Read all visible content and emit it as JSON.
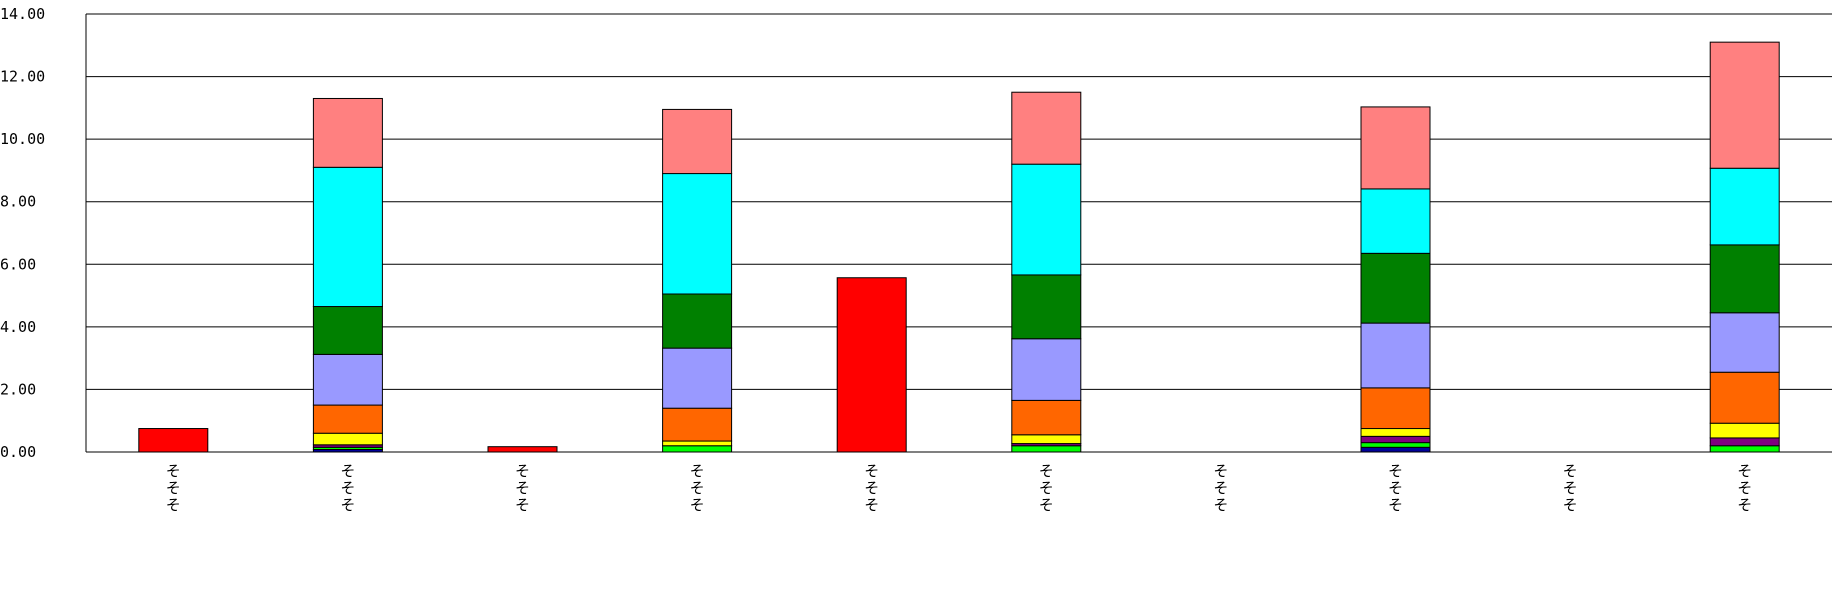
{
  "chart_data": {
    "type": "bar",
    "stacked": true,
    "title": "",
    "xlabel": "",
    "ylabel": "",
    "ylim": [
      0,
      14
    ],
    "yticks": [
      "0.00",
      "2.00",
      "4.00",
      "6.00",
      "8.00",
      "10.00",
      "12.00",
      "14.00"
    ],
    "grid": true,
    "legend": "none",
    "categories": [
      "そそそ",
      "そそそ",
      "そそそ",
      "そそそ",
      "そそそ",
      "そそそ",
      "そそそ",
      "そそそ",
      "そそそ",
      "そそそ"
    ],
    "series": [
      {
        "color": "#ff0000",
        "values": [
          0.75,
          0,
          0.17,
          0,
          5.57,
          0,
          0,
          0,
          0,
          0
        ]
      },
      {
        "color": "#000099",
        "values": [
          0,
          0.08,
          0,
          0,
          0,
          0,
          0,
          0.15,
          0,
          0
        ]
      },
      {
        "color": "#00ff00",
        "values": [
          0,
          0.07,
          0,
          0.2,
          0,
          0.2,
          0,
          0.15,
          0,
          0.2
        ]
      },
      {
        "color": "#800080",
        "values": [
          0,
          0.08,
          0,
          0,
          0,
          0.07,
          0,
          0.2,
          0,
          0.25
        ]
      },
      {
        "color": "#ffff00",
        "values": [
          0,
          0.37,
          0,
          0.15,
          0,
          0.28,
          0,
          0.25,
          0,
          0.47
        ]
      },
      {
        "color": "#ff6600",
        "values": [
          0,
          0.9,
          0,
          1.05,
          0,
          1.1,
          0,
          1.3,
          0,
          1.63
        ]
      },
      {
        "color": "#9999ff",
        "values": [
          0,
          1.62,
          0,
          1.92,
          0,
          1.97,
          0,
          2.07,
          0,
          1.9
        ]
      },
      {
        "color": "#008000",
        "values": [
          0,
          1.53,
          0,
          1.73,
          0,
          2.04,
          0,
          2.23,
          0,
          2.17
        ]
      },
      {
        "color": "#00ffff",
        "values": [
          0,
          4.45,
          0,
          3.85,
          0,
          3.54,
          0,
          2.06,
          0,
          2.45
        ]
      },
      {
        "color": "#ff8080",
        "values": [
          0,
          2.2,
          0,
          2.05,
          0,
          2.3,
          0,
          2.62,
          0,
          4.03
        ]
      }
    ]
  }
}
